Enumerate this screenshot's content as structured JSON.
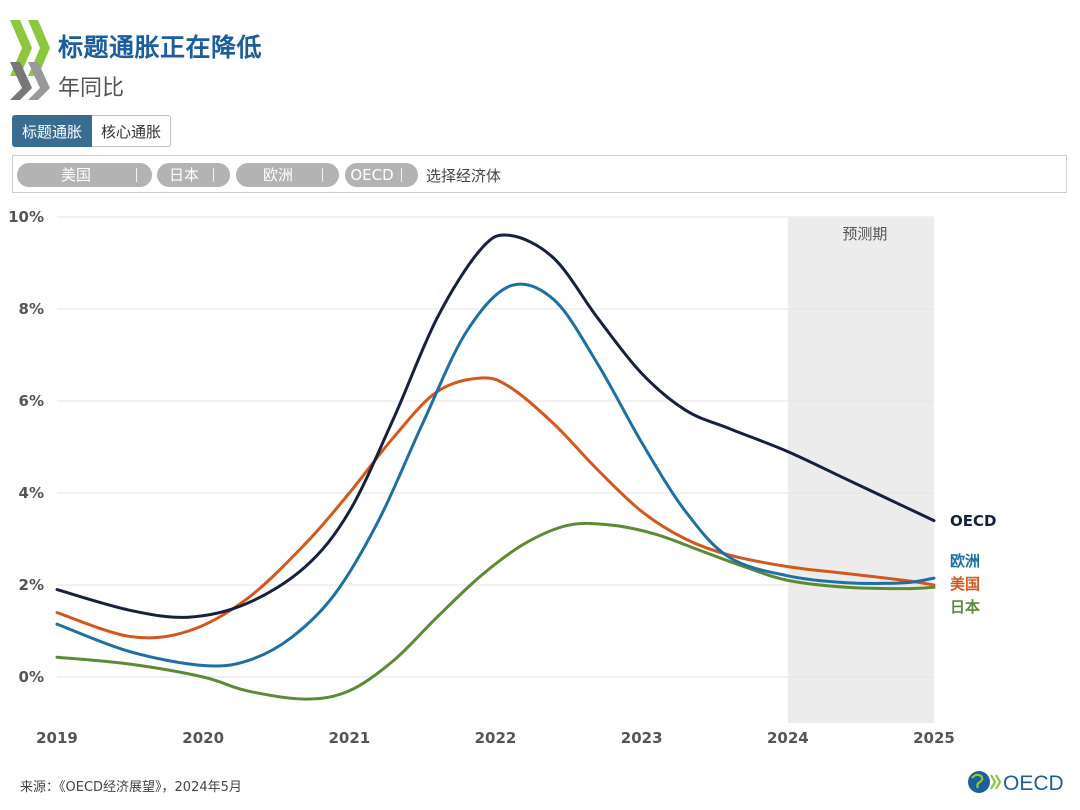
{
  "header": {
    "title": "标题通胀正在降低",
    "subtitle": "年同比"
  },
  "tabs": [
    {
      "label": "标题通胀",
      "active": true
    },
    {
      "label": "核心通胀",
      "active": false
    }
  ],
  "selector": {
    "chips": [
      "美国",
      "日本",
      "欧洲",
      "OECD"
    ],
    "placeholder": "选择经济体"
  },
  "chart_data": {
    "type": "line",
    "title": "标题通胀正在降低",
    "subtitle": "年同比",
    "xlabel": "",
    "ylabel": "",
    "x_ticks": [
      "2019",
      "2020",
      "2021",
      "2022",
      "2023",
      "2024",
      "2025"
    ],
    "y_ticks": [
      "0%",
      "2%",
      "4%",
      "6%",
      "8%",
      "10%"
    ],
    "xlim": [
      2019,
      2025
    ],
    "ylim": [
      -1,
      10
    ],
    "grid": true,
    "forecast": {
      "label": "预测期",
      "start": 2024,
      "end": 2025
    },
    "series": [
      {
        "name": "OECD",
        "color": "#16203f",
        "x": [
          2019,
          2019.5,
          2019.9,
          2020.3,
          2020.7,
          2021.0,
          2021.3,
          2021.6,
          2021.9,
          2022.1,
          2022.4,
          2022.7,
          2023.0,
          2023.3,
          2023.6,
          2024.0,
          2024.4,
          2024.8,
          2025.0
        ],
        "values": [
          1.9,
          1.45,
          1.3,
          1.6,
          2.4,
          3.6,
          5.6,
          7.8,
          9.3,
          9.6,
          9.1,
          7.8,
          6.6,
          5.8,
          5.4,
          4.9,
          4.3,
          3.7,
          3.4
        ]
      },
      {
        "name": "欧洲",
        "color": "#1f6fa3",
        "x": [
          2019,
          2019.5,
          2020.0,
          2020.3,
          2020.6,
          2020.9,
          2021.2,
          2021.5,
          2021.8,
          2022.1,
          2022.4,
          2022.7,
          2023.0,
          2023.3,
          2023.6,
          2024.0,
          2024.4,
          2024.8,
          2025.0
        ],
        "values": [
          1.15,
          0.55,
          0.25,
          0.35,
          0.85,
          1.8,
          3.4,
          5.5,
          7.5,
          8.5,
          8.2,
          6.8,
          5.1,
          3.6,
          2.6,
          2.2,
          2.05,
          2.05,
          2.15
        ]
      },
      {
        "name": "美国",
        "color": "#d4581e",
        "x": [
          2019,
          2019.5,
          2019.9,
          2020.3,
          2020.7,
          2021.0,
          2021.3,
          2021.6,
          2021.9,
          2022.1,
          2022.4,
          2022.7,
          2023.0,
          2023.3,
          2023.6,
          2024.0,
          2024.4,
          2024.8,
          2025.0
        ],
        "values": [
          1.4,
          0.88,
          1.0,
          1.7,
          2.9,
          4.0,
          5.2,
          6.2,
          6.5,
          6.3,
          5.5,
          4.5,
          3.6,
          3.0,
          2.65,
          2.4,
          2.25,
          2.1,
          2.0
        ]
      },
      {
        "name": "日本",
        "color": "#5d8a35",
        "x": [
          2019,
          2019.5,
          2020.0,
          2020.3,
          2020.7,
          2021.0,
          2021.3,
          2021.6,
          2021.9,
          2022.2,
          2022.5,
          2022.8,
          2023.1,
          2023.4,
          2023.7,
          2024.0,
          2024.4,
          2024.8,
          2025.0
        ],
        "values": [
          0.43,
          0.28,
          0.0,
          -0.3,
          -0.48,
          -0.3,
          0.35,
          1.3,
          2.2,
          2.9,
          3.3,
          3.3,
          3.1,
          2.75,
          2.4,
          2.1,
          1.95,
          1.92,
          1.95
        ]
      }
    ],
    "end_labels": [
      {
        "series": "OECD",
        "text": "OECD",
        "color": "#16203f"
      },
      {
        "series": "欧洲",
        "text": "欧洲",
        "color": "#1f6fa3"
      },
      {
        "series": "美国",
        "text": "美国",
        "color": "#d4581e"
      },
      {
        "series": "日本",
        "text": "日本",
        "color": "#5d8a35"
      }
    ]
  },
  "footer": {
    "source": "来源：《OECD经济展望》，2024年5月",
    "brand": "OECD"
  }
}
